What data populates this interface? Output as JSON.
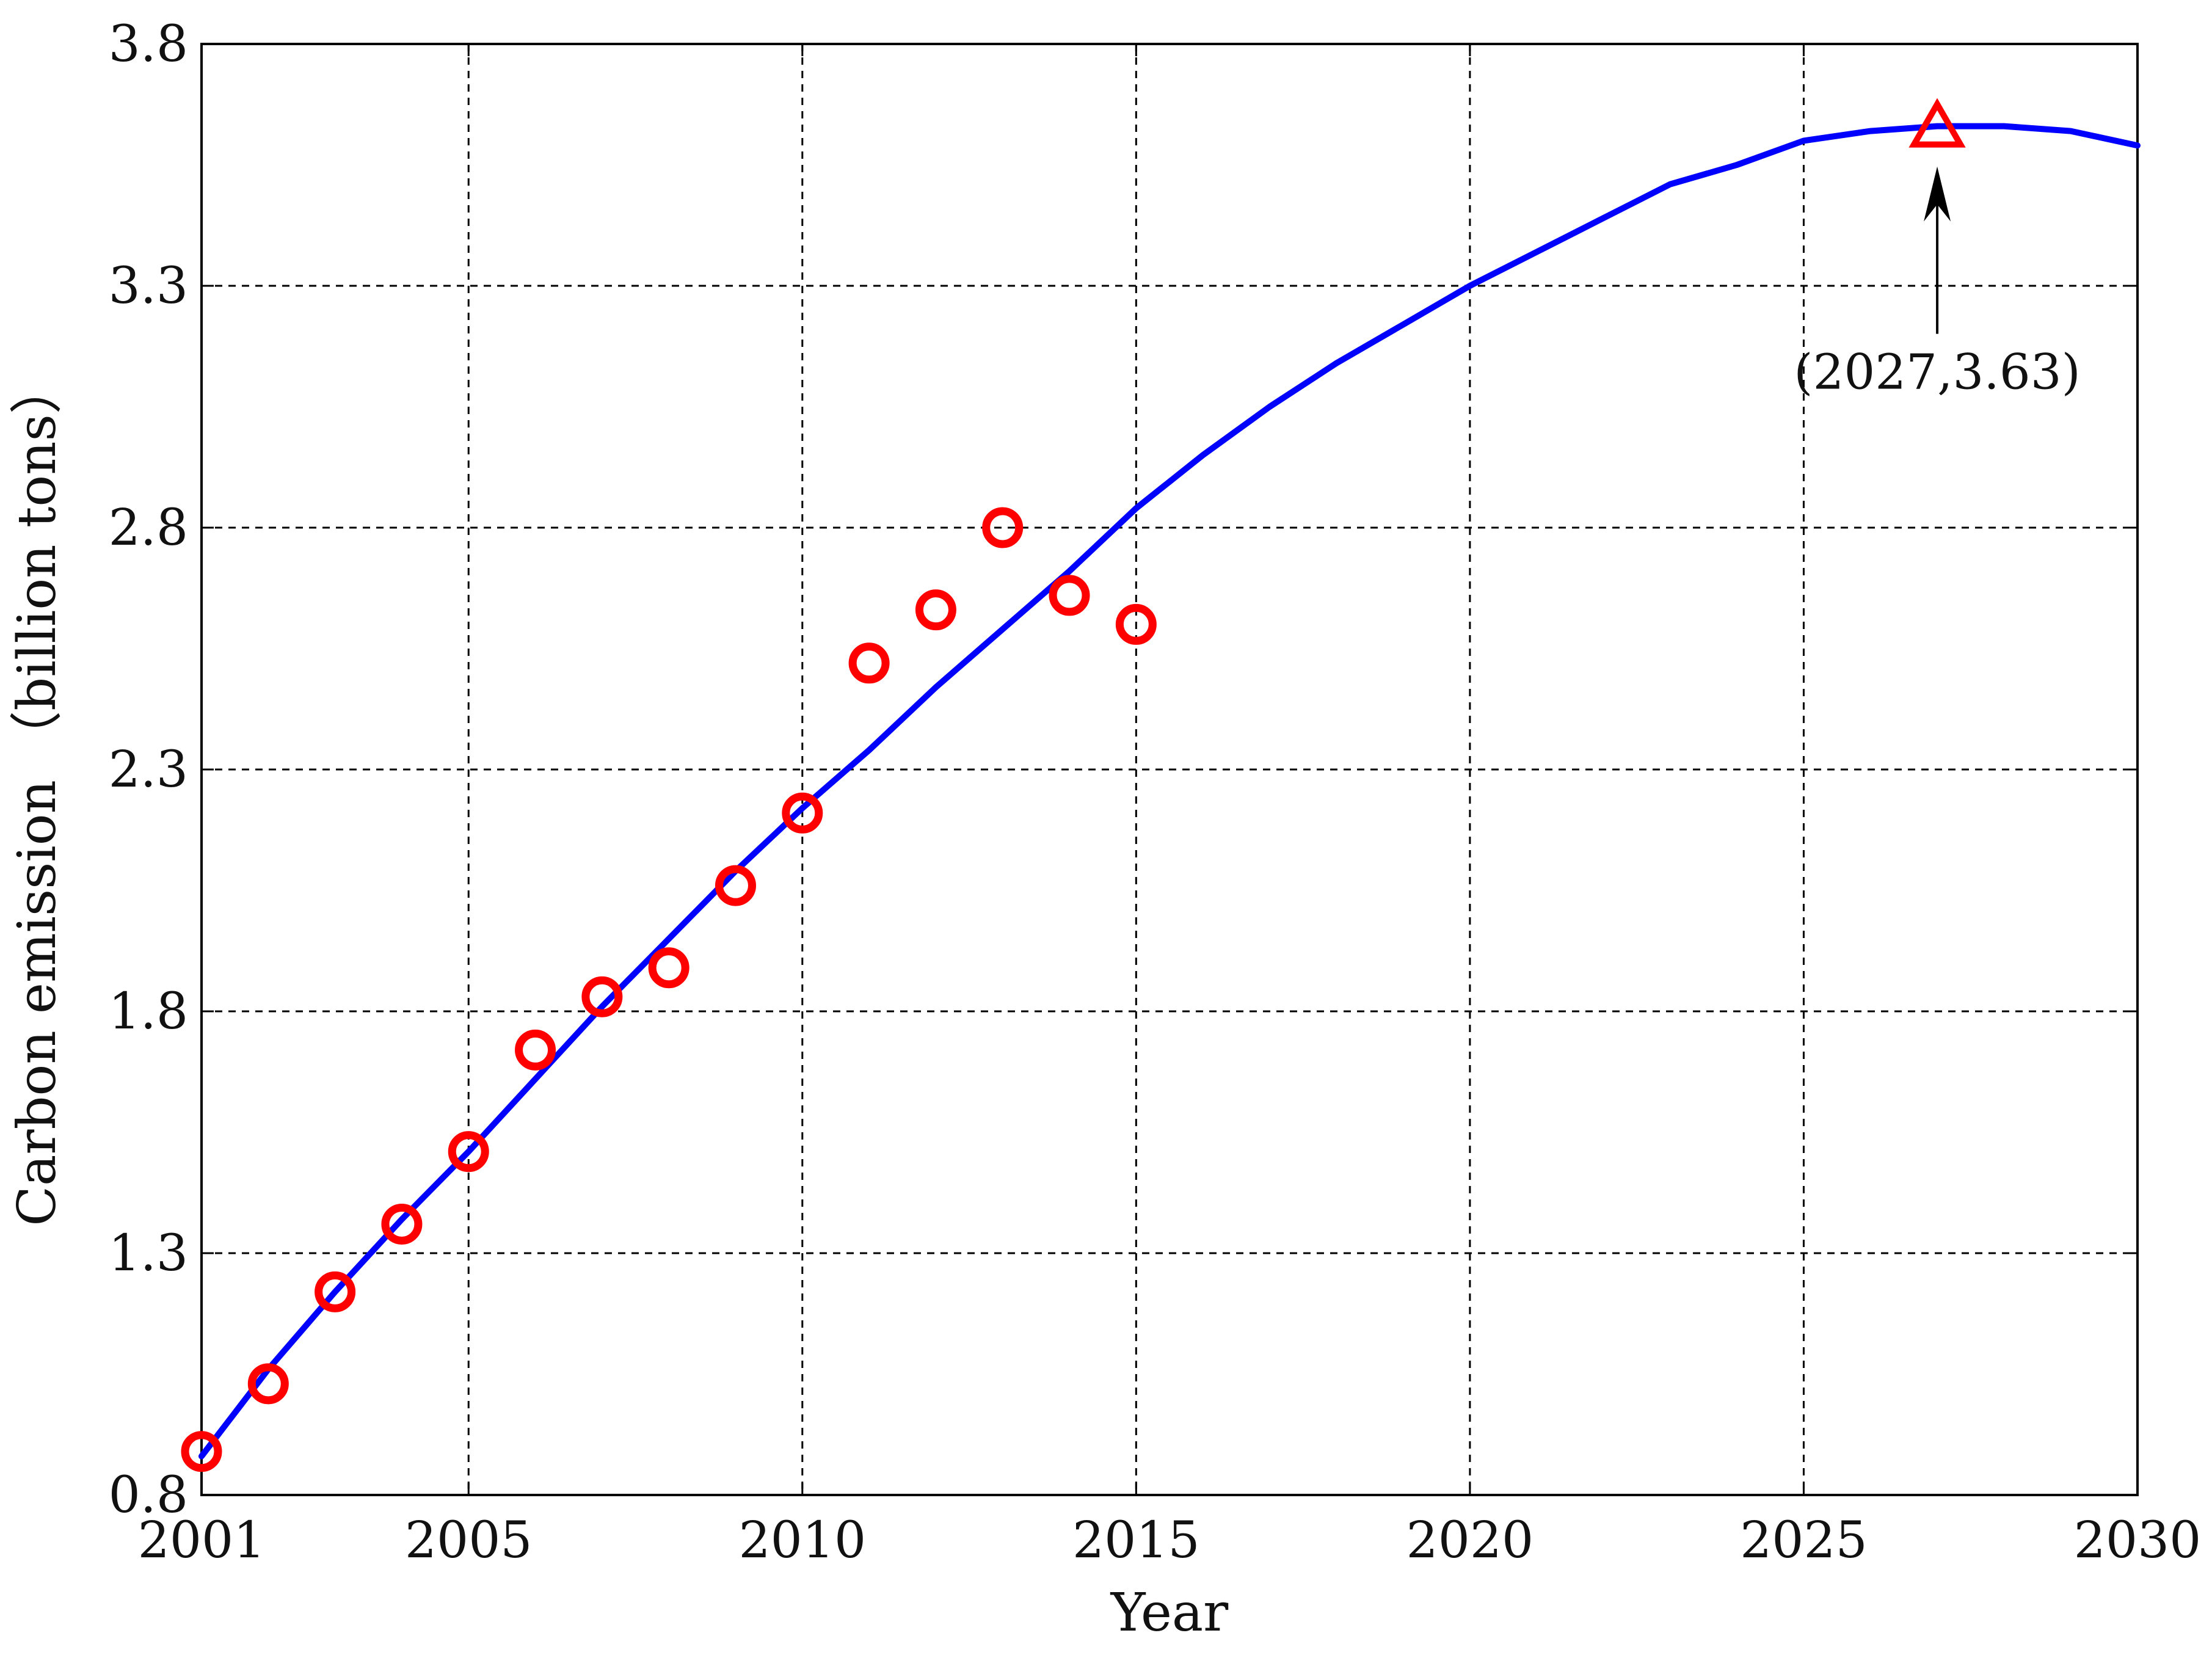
{
  "chart_data": {
    "type": "line",
    "xlabel": "Year",
    "ylabel": "Carbon emission （billion tons）",
    "xlim": [
      2001,
      2030
    ],
    "ylim": [
      0.8,
      3.8
    ],
    "x_ticks": [
      2001,
      2005,
      2010,
      2015,
      2020,
      2025,
      2030
    ],
    "x_tick_labels": [
      "2001",
      "2005",
      "2010",
      "2015",
      "2020",
      "2025",
      "2030"
    ],
    "y_ticks": [
      0.8,
      1.3,
      1.8,
      2.3,
      2.8,
      3.3,
      3.8
    ],
    "y_tick_labels": [
      "0.8",
      "1.3",
      "1.8",
      "2.3",
      "2.8",
      "3.3",
      "3.8"
    ],
    "grid": true,
    "series": [
      {
        "style": "line",
        "color": "#0000ff",
        "x": [
          2001,
          2002,
          2003,
          2004,
          2005,
          2006,
          2007,
          2008,
          2009,
          2010,
          2011,
          2012,
          2013,
          2014,
          2015,
          2016,
          2017,
          2018,
          2019,
          2020,
          2021,
          2022,
          2023,
          2024,
          2025,
          2026,
          2027,
          2028,
          2029,
          2030
        ],
        "y": [
          0.88,
          1.06,
          1.22,
          1.37,
          1.51,
          1.66,
          1.81,
          1.95,
          2.09,
          2.22,
          2.34,
          2.47,
          2.59,
          2.71,
          2.84,
          2.95,
          3.05,
          3.14,
          3.22,
          3.3,
          3.37,
          3.44,
          3.51,
          3.55,
          3.6,
          3.62,
          3.63,
          3.63,
          3.62,
          3.59
        ]
      },
      {
        "style": "scatter",
        "marker": "circle",
        "color": "#ff0000",
        "x": [
          2001,
          2002,
          2003,
          2004,
          2005,
          2006,
          2007,
          2008,
          2009,
          2010,
          2011,
          2012,
          2013,
          2014,
          2015
        ],
        "y": [
          0.89,
          1.03,
          1.22,
          1.36,
          1.51,
          1.72,
          1.83,
          1.89,
          2.06,
          2.21,
          2.52,
          2.63,
          2.8,
          2.66,
          2.6
        ]
      },
      {
        "style": "scatter",
        "marker": "triangle",
        "color": "#ff0000",
        "x": [
          2027
        ],
        "y": [
          3.63
        ]
      }
    ],
    "annotations": [
      {
        "text": "(2027,3.63)",
        "x": 2027,
        "y": 3.63,
        "arrow": true
      }
    ]
  }
}
